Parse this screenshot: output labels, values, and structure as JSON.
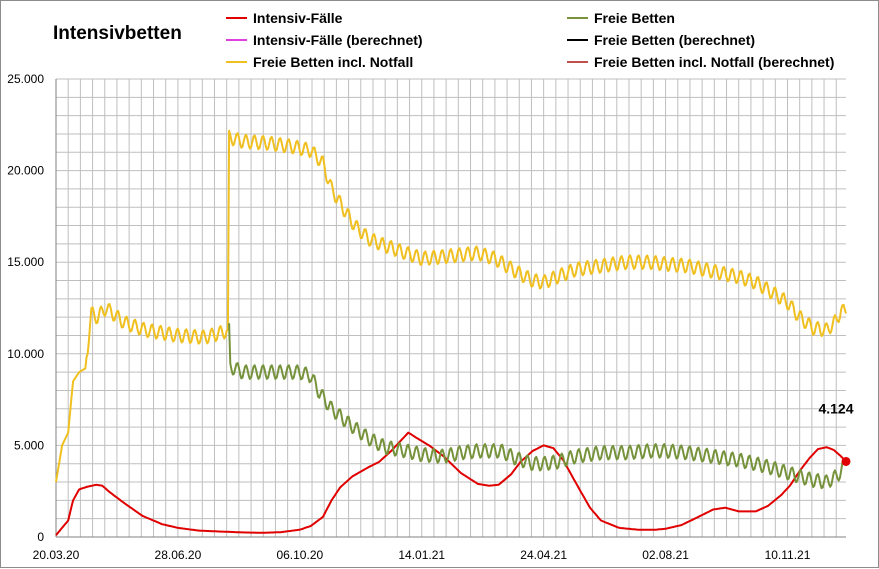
{
  "chart_data": {
    "type": "line",
    "title": "Intensivbetten",
    "x_ticks": [
      "20.03.20",
      "28.06.20",
      "06.10.20",
      "14.01.21",
      "24.04.21",
      "02.08.21",
      "10.11.21"
    ],
    "y_ticks": [
      "0",
      "5.000",
      "10.000",
      "15.000",
      "20.000",
      "25.000"
    ],
    "xlim": [
      "2020-03-20",
      "2021-12-28"
    ],
    "ylim": [
      0,
      25000
    ],
    "grid": true,
    "legend_position": "top",
    "series": [
      {
        "name": "Intensiv-Fälle",
        "color": "#e00000",
        "points": [
          [
            "2020-03-20",
            100
          ],
          [
            "2020-03-30",
            900
          ],
          [
            "2020-04-03",
            2000
          ],
          [
            "2020-04-08",
            2600
          ],
          [
            "2020-04-15",
            2750
          ],
          [
            "2020-04-22",
            2850
          ],
          [
            "2020-04-27",
            2800
          ],
          [
            "2020-05-03",
            2450
          ],
          [
            "2020-05-15",
            1850
          ],
          [
            "2020-05-30",
            1150
          ],
          [
            "2020-06-15",
            700
          ],
          [
            "2020-06-28",
            500
          ],
          [
            "2020-07-15",
            350
          ],
          [
            "2020-08-01",
            300
          ],
          [
            "2020-08-20",
            250
          ],
          [
            "2020-09-05",
            230
          ],
          [
            "2020-09-20",
            260
          ],
          [
            "2020-10-06",
            400
          ],
          [
            "2020-10-15",
            600
          ],
          [
            "2020-10-25",
            1100
          ],
          [
            "2020-11-01",
            2000
          ],
          [
            "2020-11-08",
            2700
          ],
          [
            "2020-11-18",
            3300
          ],
          [
            "2020-12-01",
            3800
          ],
          [
            "2020-12-10",
            4100
          ],
          [
            "2020-12-20",
            4700
          ],
          [
            "2021-01-03",
            5700
          ],
          [
            "2021-01-10",
            5400
          ],
          [
            "2021-01-20",
            5000
          ],
          [
            "2021-02-01",
            4400
          ],
          [
            "2021-02-15",
            3500
          ],
          [
            "2021-03-01",
            2900
          ],
          [
            "2021-03-10",
            2800
          ],
          [
            "2021-03-18",
            2850
          ],
          [
            "2021-03-28",
            3400
          ],
          [
            "2021-04-05",
            4100
          ],
          [
            "2021-04-15",
            4700
          ],
          [
            "2021-04-24",
            5000
          ],
          [
            "2021-05-02",
            4850
          ],
          [
            "2021-05-10",
            4200
          ],
          [
            "2021-05-20",
            3000
          ],
          [
            "2021-06-01",
            1600
          ],
          [
            "2021-06-10",
            900
          ],
          [
            "2021-06-25",
            500
          ],
          [
            "2021-07-10",
            400
          ],
          [
            "2021-07-25",
            400
          ],
          [
            "2021-08-02",
            450
          ],
          [
            "2021-08-15",
            650
          ],
          [
            "2021-09-01",
            1200
          ],
          [
            "2021-09-10",
            1500
          ],
          [
            "2021-09-20",
            1600
          ],
          [
            "2021-10-01",
            1400
          ],
          [
            "2021-10-15",
            1400
          ],
          [
            "2021-10-25",
            1700
          ],
          [
            "2021-11-05",
            2300
          ],
          [
            "2021-11-12",
            2800
          ],
          [
            "2021-11-20",
            3600
          ],
          [
            "2021-11-28",
            4300
          ],
          [
            "2021-12-05",
            4800
          ],
          [
            "2021-12-12",
            4900
          ],
          [
            "2021-12-18",
            4750
          ],
          [
            "2021-12-24",
            4400
          ],
          [
            "2021-12-28",
            4124
          ]
        ]
      },
      {
        "name": "Intensiv-Fälle (berechnet)",
        "color": "#e040e0",
        "points": []
      },
      {
        "name": "Freie Betten incl. Notfall",
        "color": "#f0c020",
        "points": [
          [
            "2020-03-20",
            3000
          ],
          [
            "2020-03-25",
            5000
          ],
          [
            "2020-03-30",
            5700
          ],
          [
            "2020-04-03",
            8500
          ],
          [
            "2020-04-08",
            9000
          ],
          [
            "2020-04-13",
            9200
          ],
          [
            "2020-04-18",
            12200
          ],
          [
            "2020-04-23",
            12000
          ],
          [
            "2020-04-30",
            12500
          ],
          [
            "2020-05-15",
            11700
          ],
          [
            "2020-06-01",
            11300
          ],
          [
            "2020-06-28",
            11000
          ],
          [
            "2020-07-20",
            10900
          ],
          [
            "2020-08-05",
            11200
          ],
          [
            "2020-08-08",
            11300
          ],
          [
            "2020-08-09",
            21800
          ],
          [
            "2020-08-20",
            21600
          ],
          [
            "2020-09-10",
            21500
          ],
          [
            "2020-10-01",
            21300
          ],
          [
            "2020-10-15",
            21100
          ],
          [
            "2020-10-25",
            20400
          ],
          [
            "2020-11-01",
            19000
          ],
          [
            "2020-11-10",
            18000
          ],
          [
            "2020-11-20",
            17000
          ],
          [
            "2020-12-01",
            16300
          ],
          [
            "2020-12-15",
            15900
          ],
          [
            "2021-01-01",
            15500
          ],
          [
            "2021-01-14",
            15200
          ],
          [
            "2021-02-01",
            15300
          ],
          [
            "2021-03-01",
            15500
          ],
          [
            "2021-03-15",
            15200
          ],
          [
            "2021-04-01",
            14500
          ],
          [
            "2021-04-15",
            14000
          ],
          [
            "2021-04-24",
            13900
          ],
          [
            "2021-05-05",
            14200
          ],
          [
            "2021-05-20",
            14600
          ],
          [
            "2021-06-10",
            14800
          ],
          [
            "2021-07-01",
            15000
          ],
          [
            "2021-07-20",
            15000
          ],
          [
            "2021-08-02",
            14900
          ],
          [
            "2021-08-20",
            14800
          ],
          [
            "2021-09-10",
            14500
          ],
          [
            "2021-10-01",
            14200
          ],
          [
            "2021-10-15",
            13900
          ],
          [
            "2021-11-01",
            13200
          ],
          [
            "2021-11-10",
            12800
          ],
          [
            "2021-11-20",
            12000
          ],
          [
            "2021-12-01",
            11400
          ],
          [
            "2021-12-12",
            11300
          ],
          [
            "2021-12-20",
            11800
          ],
          [
            "2021-12-24",
            12400
          ],
          [
            "2021-12-28",
            12200
          ]
        ]
      },
      {
        "name": "Freie Betten",
        "color": "#76933c",
        "points": [
          [
            "2020-08-09",
            11300
          ],
          [
            "2020-08-10",
            9300
          ],
          [
            "2020-08-20",
            9000
          ],
          [
            "2020-09-10",
            9000
          ],
          [
            "2020-10-06",
            9000
          ],
          [
            "2020-10-15",
            8800
          ],
          [
            "2020-10-22",
            7900
          ],
          [
            "2020-11-01",
            7000
          ],
          [
            "2020-11-15",
            6200
          ],
          [
            "2020-12-01",
            5400
          ],
          [
            "2020-12-15",
            4900
          ],
          [
            "2021-01-01",
            4700
          ],
          [
            "2021-01-14",
            4500
          ],
          [
            "2021-02-01",
            4400
          ],
          [
            "2021-02-15",
            4600
          ],
          [
            "2021-03-01",
            4700
          ],
          [
            "2021-03-20",
            4700
          ],
          [
            "2021-04-01",
            4300
          ],
          [
            "2021-04-15",
            4000
          ],
          [
            "2021-04-24",
            4000
          ],
          [
            "2021-05-05",
            4100
          ],
          [
            "2021-05-20",
            4400
          ],
          [
            "2021-06-10",
            4600
          ],
          [
            "2021-07-01",
            4600
          ],
          [
            "2021-07-20",
            4700
          ],
          [
            "2021-08-02",
            4700
          ],
          [
            "2021-08-20",
            4600
          ],
          [
            "2021-09-10",
            4400
          ],
          [
            "2021-10-01",
            4200
          ],
          [
            "2021-10-15",
            4000
          ],
          [
            "2021-11-01",
            3700
          ],
          [
            "2021-11-15",
            3400
          ],
          [
            "2021-12-01",
            3100
          ],
          [
            "2021-12-12",
            3000
          ],
          [
            "2021-12-20",
            3300
          ],
          [
            "2021-12-24",
            3600
          ],
          [
            "2021-12-28",
            4100
          ]
        ]
      },
      {
        "name": "Freie Betten (berechnet)",
        "color": "#000000",
        "points": []
      },
      {
        "name": "Freie Betten incl. Notfall (berechnet)",
        "color": "#c0504d",
        "points": []
      }
    ],
    "annotations": [
      {
        "text": "4.124",
        "x": "2021-12-28",
        "y": 4124,
        "color": "#e00000"
      }
    ]
  }
}
